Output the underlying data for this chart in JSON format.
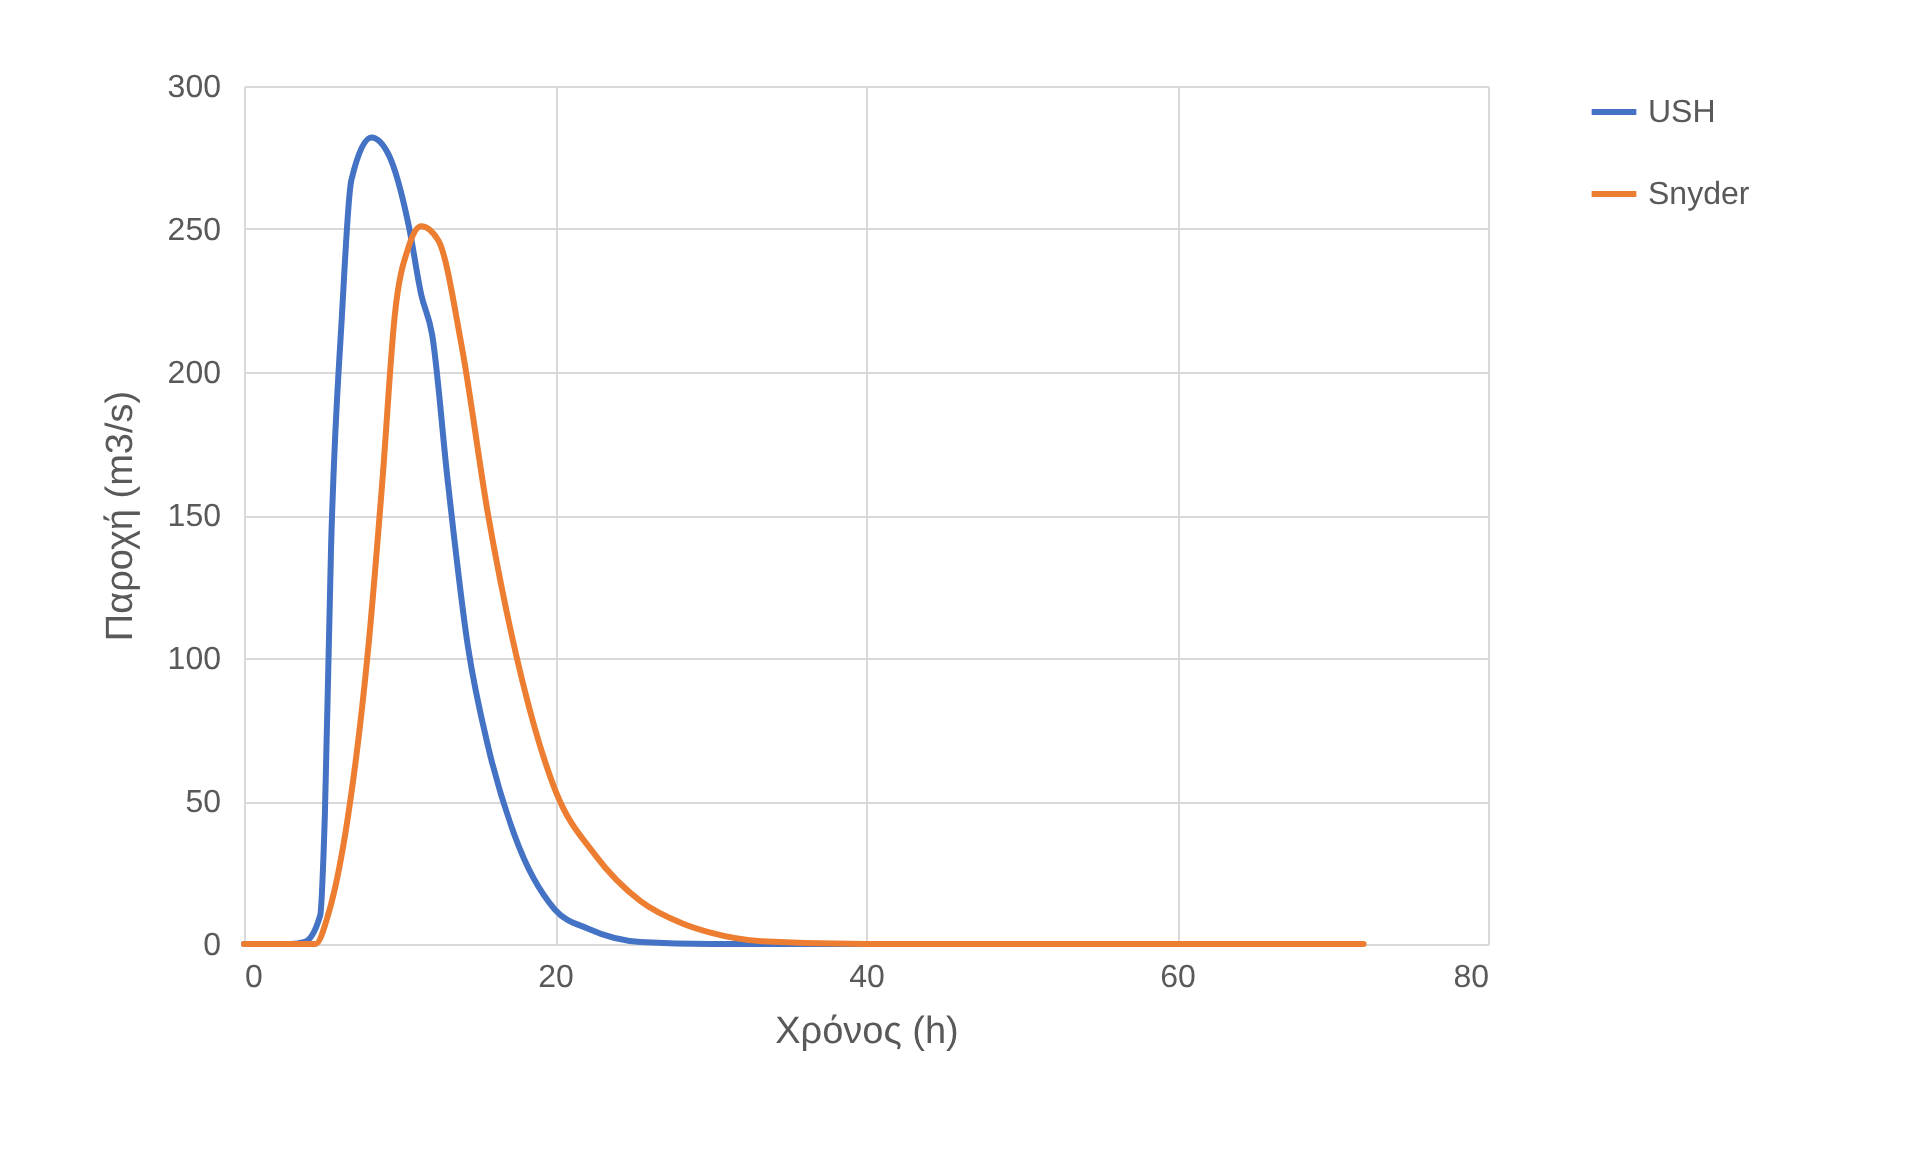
{
  "chart_data": {
    "type": "line",
    "xlabel": "Χρόνος (h)",
    "ylabel": "Παροχή (m3/s)",
    "xlim": [
      0,
      80
    ],
    "xticks": [
      0,
      20,
      40,
      60,
      80
    ],
    "ylim": [
      0,
      300
    ],
    "yticks": [
      0,
      50,
      100,
      150,
      200,
      250,
      300
    ],
    "grid": true,
    "legend": "right",
    "marker": "none",
    "line_style": "solid",
    "series": [
      {
        "name": "USH",
        "color": "#4472c4",
        "x": [
          0,
          3,
          3.9,
          4.9,
          5.2,
          5.6,
          6.3,
          6.9,
          8.2,
          9.3,
          10.6,
          11.4,
          12.1,
          13.1,
          14.4,
          15.7,
          17.4,
          20,
          22.1,
          25.5,
          30,
          40,
          50
        ],
        "values": [
          0,
          0,
          0.7,
          10,
          45,
          139,
          220,
          267,
          282,
          276,
          251,
          227,
          213,
          162,
          104,
          69,
          38,
          12,
          5.4,
          0.7,
          0,
          0,
          0
        ]
      },
      {
        "name": "Snyder",
        "color": "#ed7d31",
        "x": [
          0,
          4.6,
          5.4,
          6.7,
          8,
          8.9,
          9.7,
          10.6,
          11.4,
          12.5,
          14,
          15.7,
          17.9,
          20,
          22.6,
          25.5,
          28.2,
          30,
          33.3,
          40,
          50,
          60,
          72
        ],
        "values": [
          0,
          0,
          10,
          45,
          104,
          162,
          220,
          244,
          251,
          246,
          209,
          150,
          92,
          54,
          31,
          15,
          7.2,
          4,
          1,
          0,
          0,
          0,
          0
        ]
      }
    ]
  }
}
